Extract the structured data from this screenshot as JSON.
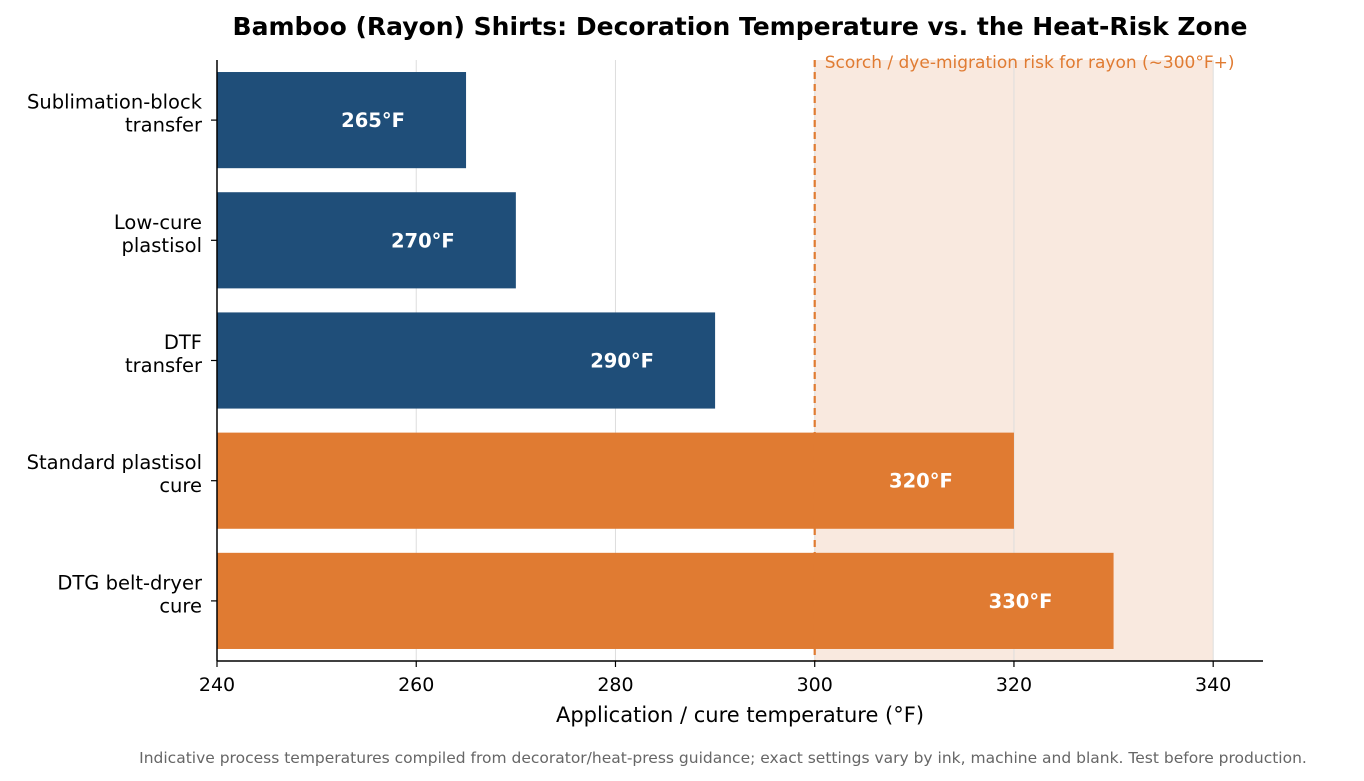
{
  "chart_data": {
    "type": "bar",
    "orientation": "horizontal",
    "title": "Bamboo (Rayon) Shirts: Decoration Temperature vs. the Heat-Risk Zone",
    "xlabel": "Application / cure temperature (°F)",
    "ylabel": "",
    "xlim": [
      240,
      345
    ],
    "xticks": [
      240,
      260,
      280,
      300,
      320,
      340
    ],
    "grid": "vertical",
    "categories": [
      [
        "Sublimation-block",
        "transfer"
      ],
      [
        "Low-cure",
        "plastisol"
      ],
      [
        "DTF",
        "transfer"
      ],
      [
        "Standard plastisol",
        "cure"
      ],
      [
        "DTG belt-dryer",
        "cure"
      ]
    ],
    "values": [
      265,
      270,
      290,
      320,
      330
    ],
    "value_labels": [
      "265°F",
      "270°F",
      "290°F",
      "320°F",
      "330°F"
    ],
    "risk_zone": {
      "start": 300,
      "end": 340,
      "label": "Scorch / dye-migration risk for rayon (~300°F+)"
    },
    "footnote": "Indicative process temperatures compiled from decorator/heat-press guidance; exact settings vary by ink, machine and blank. Test before production.",
    "colors": {
      "safe": "#1f4e79",
      "risk": "#e07b32",
      "risk_zone_fill": "#f9e9df",
      "threshold_line": "#e07b32",
      "gridline": "#dddddd"
    }
  }
}
